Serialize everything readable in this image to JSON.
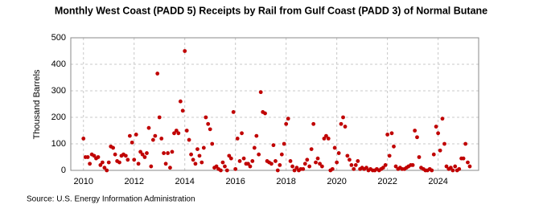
{
  "chart_data": {
    "type": "scatter",
    "title": "Monthly West Coast (PADD 5) Receipts by Rail from Gulf Coast (PADD 3) of Normal Butane",
    "y_label": "Thousand Barrels",
    "source": "Source: U.S. Energy Information Administration",
    "color": "#c00000",
    "grid": true,
    "xlim": [
      2009.5,
      2025.6
    ],
    "xticks": [
      2010,
      2012,
      2014,
      2016,
      2018,
      2020,
      2022,
      2024
    ],
    "ylim": [
      0,
      500
    ],
    "yticks": [
      0,
      100,
      200,
      300,
      400,
      500
    ],
    "x": [
      2010.0,
      2010.08,
      2010.17,
      2010.25,
      2010.33,
      2010.42,
      2010.5,
      2010.58,
      2010.67,
      2010.75,
      2010.83,
      2010.92,
      2011.0,
      2011.08,
      2011.17,
      2011.25,
      2011.33,
      2011.42,
      2011.5,
      2011.58,
      2011.67,
      2011.75,
      2011.83,
      2011.92,
      2012.0,
      2012.08,
      2012.17,
      2012.25,
      2012.33,
      2012.42,
      2012.5,
      2012.58,
      2012.67,
      2012.75,
      2012.83,
      2012.92,
      2013.0,
      2013.08,
      2013.17,
      2013.25,
      2013.33,
      2013.42,
      2013.5,
      2013.58,
      2013.67,
      2013.75,
      2013.83,
      2013.92,
      2014.0,
      2014.08,
      2014.17,
      2014.25,
      2014.33,
      2014.42,
      2014.5,
      2014.58,
      2014.67,
      2014.75,
      2014.83,
      2014.92,
      2015.0,
      2015.08,
      2015.17,
      2015.25,
      2015.33,
      2015.42,
      2015.5,
      2015.58,
      2015.67,
      2015.75,
      2015.83,
      2015.92,
      2016.0,
      2016.08,
      2016.17,
      2016.25,
      2016.33,
      2016.42,
      2016.5,
      2016.58,
      2016.67,
      2016.75,
      2016.83,
      2016.92,
      2017.0,
      2017.08,
      2017.17,
      2017.25,
      2017.33,
      2017.42,
      2017.5,
      2017.58,
      2017.67,
      2017.75,
      2017.83,
      2017.92,
      2018.0,
      2018.08,
      2018.17,
      2018.25,
      2018.33,
      2018.42,
      2018.5,
      2018.58,
      2018.67,
      2018.75,
      2018.83,
      2018.92,
      2019.0,
      2019.08,
      2019.17,
      2019.25,
      2019.33,
      2019.42,
      2019.5,
      2019.58,
      2019.67,
      2019.75,
      2019.83,
      2019.92,
      2020.0,
      2020.08,
      2020.17,
      2020.25,
      2020.33,
      2020.42,
      2020.5,
      2020.58,
      2020.67,
      2020.75,
      2020.83,
      2020.92,
      2021.0,
      2021.08,
      2021.17,
      2021.25,
      2021.33,
      2021.42,
      2021.5,
      2021.58,
      2021.67,
      2021.75,
      2021.83,
      2021.92,
      2022.0,
      2022.08,
      2022.17,
      2022.25,
      2022.33,
      2022.42,
      2022.5,
      2022.58,
      2022.67,
      2022.75,
      2022.83,
      2022.92,
      2023.0,
      2023.08,
      2023.17,
      2023.25,
      2023.33,
      2023.42,
      2023.5,
      2023.58,
      2023.67,
      2023.75,
      2023.83,
      2023.92,
      2024.0,
      2024.08,
      2024.17,
      2024.25,
      2024.33,
      2024.42,
      2024.5,
      2024.58,
      2024.67,
      2024.75,
      2024.83,
      2024.92,
      2025.0,
      2025.08,
      2025.17,
      2025.25
    ],
    "values": [
      120,
      50,
      50,
      25,
      60,
      55,
      45,
      50,
      20,
      30,
      10,
      0,
      30,
      90,
      85,
      60,
      35,
      30,
      55,
      60,
      55,
      40,
      130,
      105,
      40,
      135,
      25,
      70,
      60,
      50,
      65,
      160,
      15,
      115,
      130,
      365,
      200,
      120,
      65,
      25,
      65,
      10,
      70,
      140,
      150,
      140,
      260,
      225,
      450,
      150,
      115,
      60,
      40,
      25,
      80,
      55,
      30,
      85,
      200,
      175,
      155,
      100,
      10,
      15,
      5,
      0,
      30,
      15,
      0,
      55,
      45,
      220,
      5,
      120,
      35,
      140,
      45,
      25,
      25,
      15,
      35,
      85,
      130,
      60,
      295,
      220,
      215,
      35,
      30,
      25,
      95,
      35,
      0,
      20,
      60,
      100,
      175,
      195,
      35,
      15,
      0,
      10,
      0,
      5,
      5,
      25,
      40,
      15,
      80,
      175,
      30,
      45,
      25,
      15,
      120,
      130,
      120,
      0,
      5,
      85,
      30,
      65,
      175,
      200,
      165,
      55,
      40,
      20,
      5,
      20,
      35,
      5,
      10,
      5,
      10,
      0,
      5,
      0,
      0,
      5,
      0,
      5,
      10,
      20,
      135,
      55,
      140,
      90,
      15,
      5,
      10,
      5,
      5,
      10,
      15,
      20,
      20,
      150,
      125,
      50,
      10,
      5,
      0,
      0,
      5,
      0,
      60,
      165,
      140,
      75,
      195,
      100,
      15,
      5,
      10,
      0,
      15,
      0,
      5,
      45,
      45,
      100,
      30,
      15
    ]
  }
}
